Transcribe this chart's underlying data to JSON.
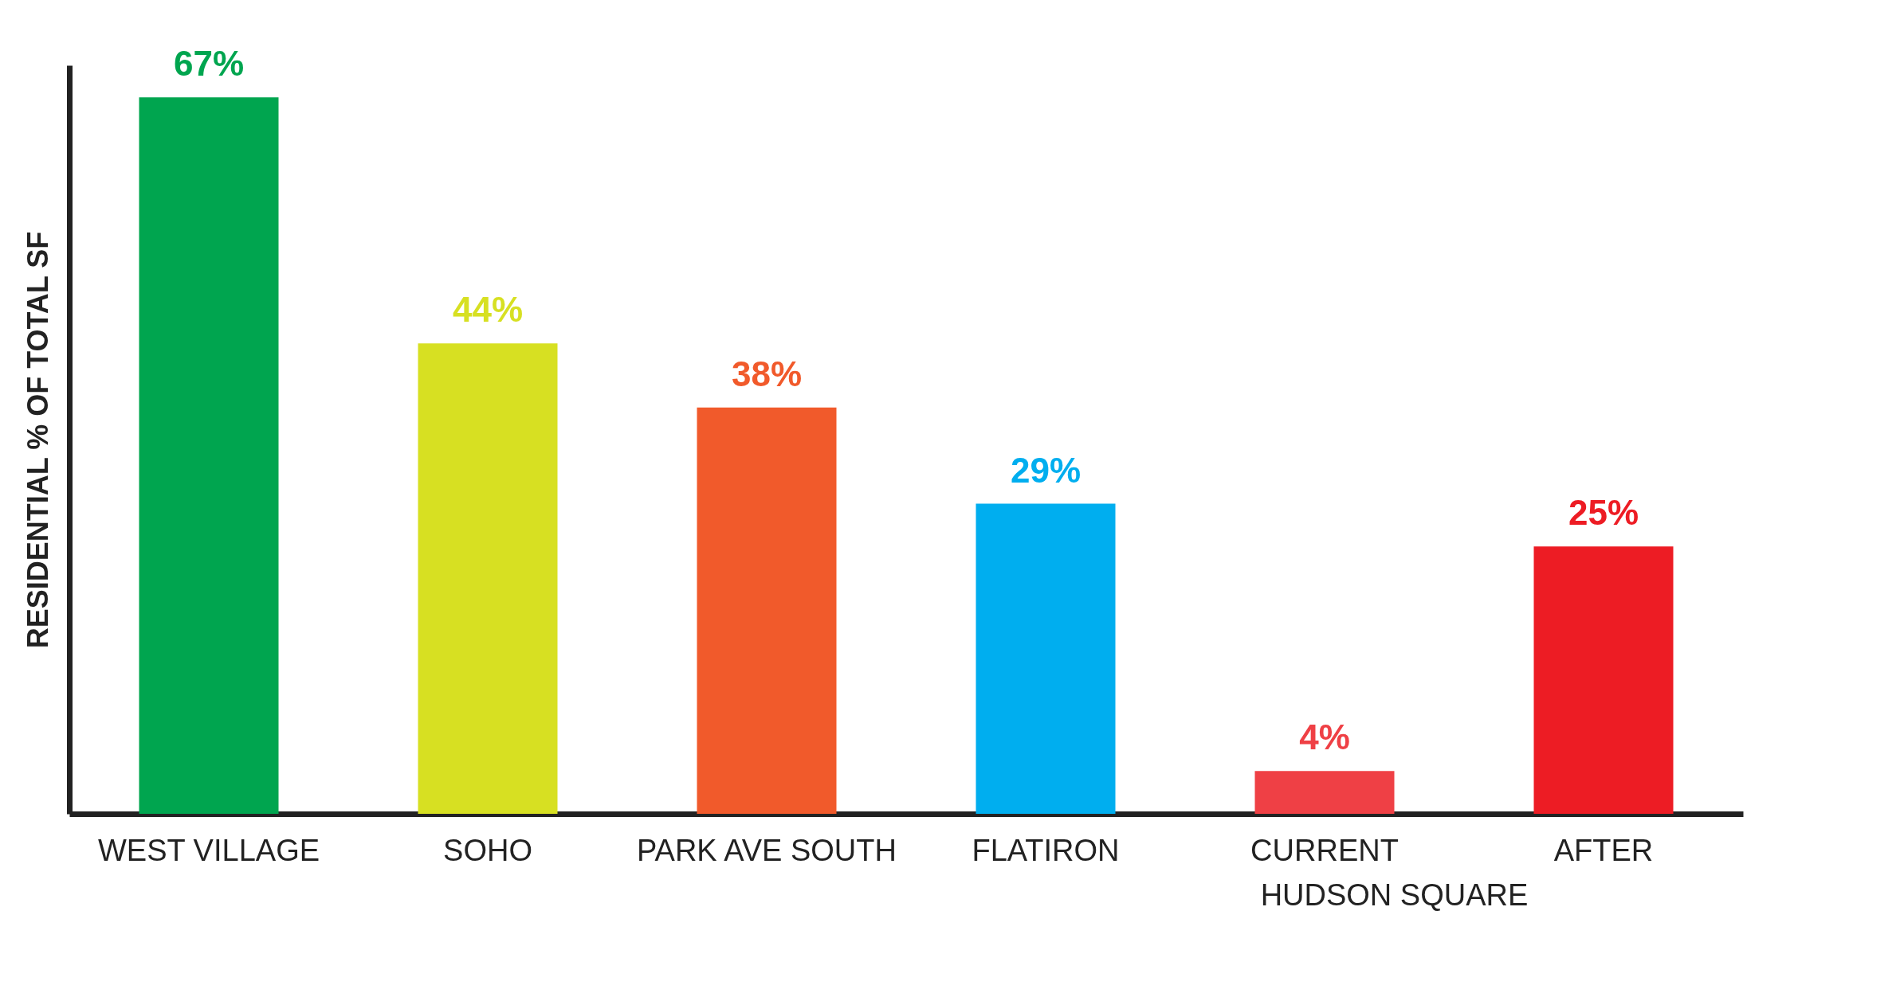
{
  "chart_data": {
    "type": "bar",
    "ylabel": "RESIDENTIAL % OF TOTAL SF",
    "categories": [
      "WEST VILLAGE",
      "SOHO",
      "PARK AVE SOUTH",
      "FLATIRON",
      "CURRENT",
      "AFTER"
    ],
    "values": [
      67,
      44,
      38,
      29,
      4,
      25
    ],
    "colors": [
      "#00a54f",
      "#d7e022",
      "#f15a2b",
      "#00aeef",
      "#ef4045",
      "#ed1c24"
    ],
    "value_labels": [
      "67%",
      "44%",
      "38%",
      "29%",
      "4%",
      "25%"
    ],
    "annotations": [
      "HUDSON SQUARE"
    ],
    "tick_labels": "x",
    "grid": false
  }
}
